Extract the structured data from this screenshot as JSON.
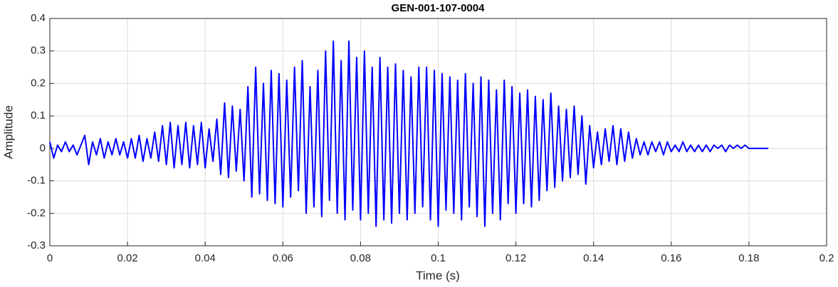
{
  "chart_data": {
    "type": "line",
    "title": "GEN-001-107-0004",
    "x_label": "Time (s)",
    "y_label": "Amplitude",
    "x": [
      0,
      0.001,
      0.002,
      0.003,
      0.004,
      0.005,
      0.006,
      0.007,
      0.008,
      0.009,
      0.01,
      0.011,
      0.012,
      0.013,
      0.014,
      0.015,
      0.016,
      0.017,
      0.018,
      0.019,
      0.02,
      0.021,
      0.022,
      0.023,
      0.024,
      0.025,
      0.026,
      0.027,
      0.028,
      0.029,
      0.03,
      0.031,
      0.032,
      0.033,
      0.034,
      0.035,
      0.036,
      0.037,
      0.038,
      0.039,
      0.04,
      0.041,
      0.042,
      0.043,
      0.044,
      0.045,
      0.046,
      0.047,
      0.048,
      0.049,
      0.05,
      0.051,
      0.052,
      0.053,
      0.054,
      0.055,
      0.056,
      0.057,
      0.058,
      0.059,
      0.06,
      0.061,
      0.062,
      0.063,
      0.064,
      0.065,
      0.066,
      0.067,
      0.068,
      0.069,
      0.07,
      0.071,
      0.072,
      0.073,
      0.074,
      0.075,
      0.076,
      0.077,
      0.078,
      0.079,
      0.08,
      0.081,
      0.082,
      0.083,
      0.084,
      0.085,
      0.086,
      0.087,
      0.088,
      0.089,
      0.09,
      0.091,
      0.092,
      0.093,
      0.094,
      0.095,
      0.096,
      0.097,
      0.098,
      0.099,
      0.1,
      0.101,
      0.102,
      0.103,
      0.104,
      0.105,
      0.106,
      0.107,
      0.108,
      0.109,
      0.11,
      0.111,
      0.112,
      0.113,
      0.114,
      0.115,
      0.116,
      0.117,
      0.118,
      0.119,
      0.12,
      0.121,
      0.122,
      0.123,
      0.124,
      0.125,
      0.126,
      0.127,
      0.128,
      0.129,
      0.13,
      0.131,
      0.132,
      0.133,
      0.134,
      0.135,
      0.136,
      0.137,
      0.138,
      0.139,
      0.14,
      0.141,
      0.142,
      0.143,
      0.144,
      0.145,
      0.146,
      0.147,
      0.148,
      0.149,
      0.15,
      0.151,
      0.152,
      0.153,
      0.154,
      0.155,
      0.156,
      0.157,
      0.158,
      0.159,
      0.16,
      0.161,
      0.162,
      0.163,
      0.164,
      0.165,
      0.166,
      0.167,
      0.168,
      0.169,
      0.17,
      0.171,
      0.172,
      0.173,
      0.174,
      0.175,
      0.176,
      0.177,
      0.178,
      0.179,
      0.18,
      0.181,
      0.182,
      0.183,
      0.184,
      0.185
    ],
    "series": [
      {
        "name": "Amplitude",
        "color": "#0000ff",
        "values": [
          0.02,
          -0.03,
          0.01,
          -0.01,
          0.02,
          -0.01,
          0.01,
          -0.02,
          0.01,
          0.04,
          -0.05,
          0.02,
          -0.02,
          0.03,
          -0.03,
          0.02,
          -0.02,
          0.03,
          -0.02,
          0.02,
          -0.03,
          0.03,
          -0.03,
          0.04,
          -0.04,
          0.03,
          -0.03,
          0.05,
          -0.04,
          0.07,
          -0.05,
          0.08,
          -0.06,
          0.07,
          -0.05,
          0.08,
          -0.06,
          0.07,
          -0.05,
          0.08,
          -0.06,
          0.06,
          -0.04,
          0.09,
          -0.08,
          0.14,
          -0.09,
          0.13,
          -0.07,
          0.12,
          -0.1,
          0.19,
          -0.15,
          0.25,
          -0.14,
          0.2,
          -0.16,
          0.24,
          -0.17,
          0.23,
          -0.18,
          0.21,
          -0.15,
          0.25,
          -0.13,
          0.27,
          -0.2,
          0.19,
          -0.18,
          0.24,
          -0.21,
          0.3,
          -0.16,
          0.33,
          -0.2,
          0.27,
          -0.22,
          0.33,
          -0.19,
          0.28,
          -0.22,
          0.3,
          -0.2,
          0.25,
          -0.24,
          0.28,
          -0.22,
          0.25,
          -0.23,
          0.26,
          -0.2,
          0.24,
          -0.22,
          0.22,
          -0.2,
          0.25,
          -0.18,
          0.25,
          -0.22,
          0.24,
          -0.24,
          0.23,
          -0.19,
          0.22,
          -0.2,
          0.21,
          -0.22,
          0.23,
          -0.18,
          0.2,
          -0.21,
          0.22,
          -0.24,
          0.21,
          -0.2,
          0.18,
          -0.22,
          0.21,
          -0.17,
          0.19,
          -0.2,
          0.17,
          -0.17,
          0.18,
          -0.18,
          0.16,
          -0.16,
          0.15,
          -0.13,
          0.17,
          -0.12,
          0.13,
          -0.1,
          0.12,
          -0.09,
          0.13,
          -0.08,
          0.1,
          -0.11,
          0.07,
          -0.06,
          0.05,
          -0.05,
          0.06,
          -0.04,
          0.07,
          -0.05,
          0.06,
          -0.04,
          0.05,
          -0.03,
          0.03,
          -0.02,
          0.02,
          -0.02,
          0.02,
          -0.01,
          0.02,
          -0.02,
          0.02,
          -0.01,
          0.01,
          -0.01,
          0.02,
          -0.01,
          0.01,
          -0.01,
          0.01,
          -0.01,
          0.01,
          -0.01,
          0.01,
          0,
          0.01,
          -0.01,
          0.01,
          0,
          0.01,
          0,
          0.01,
          0,
          0,
          0,
          0,
          0,
          0
        ]
      }
    ],
    "xlim": [
      0,
      0.2
    ],
    "xticks": [
      0,
      0.02,
      0.04,
      0.06,
      0.08,
      0.1,
      0.12,
      0.14,
      0.16,
      0.18,
      0.2
    ],
    "ylim": [
      -0.3,
      0.4
    ],
    "yticks": [
      -0.3,
      -0.2,
      -0.1,
      0,
      0.1,
      0.2,
      0.3,
      0.4
    ],
    "grid": true
  }
}
